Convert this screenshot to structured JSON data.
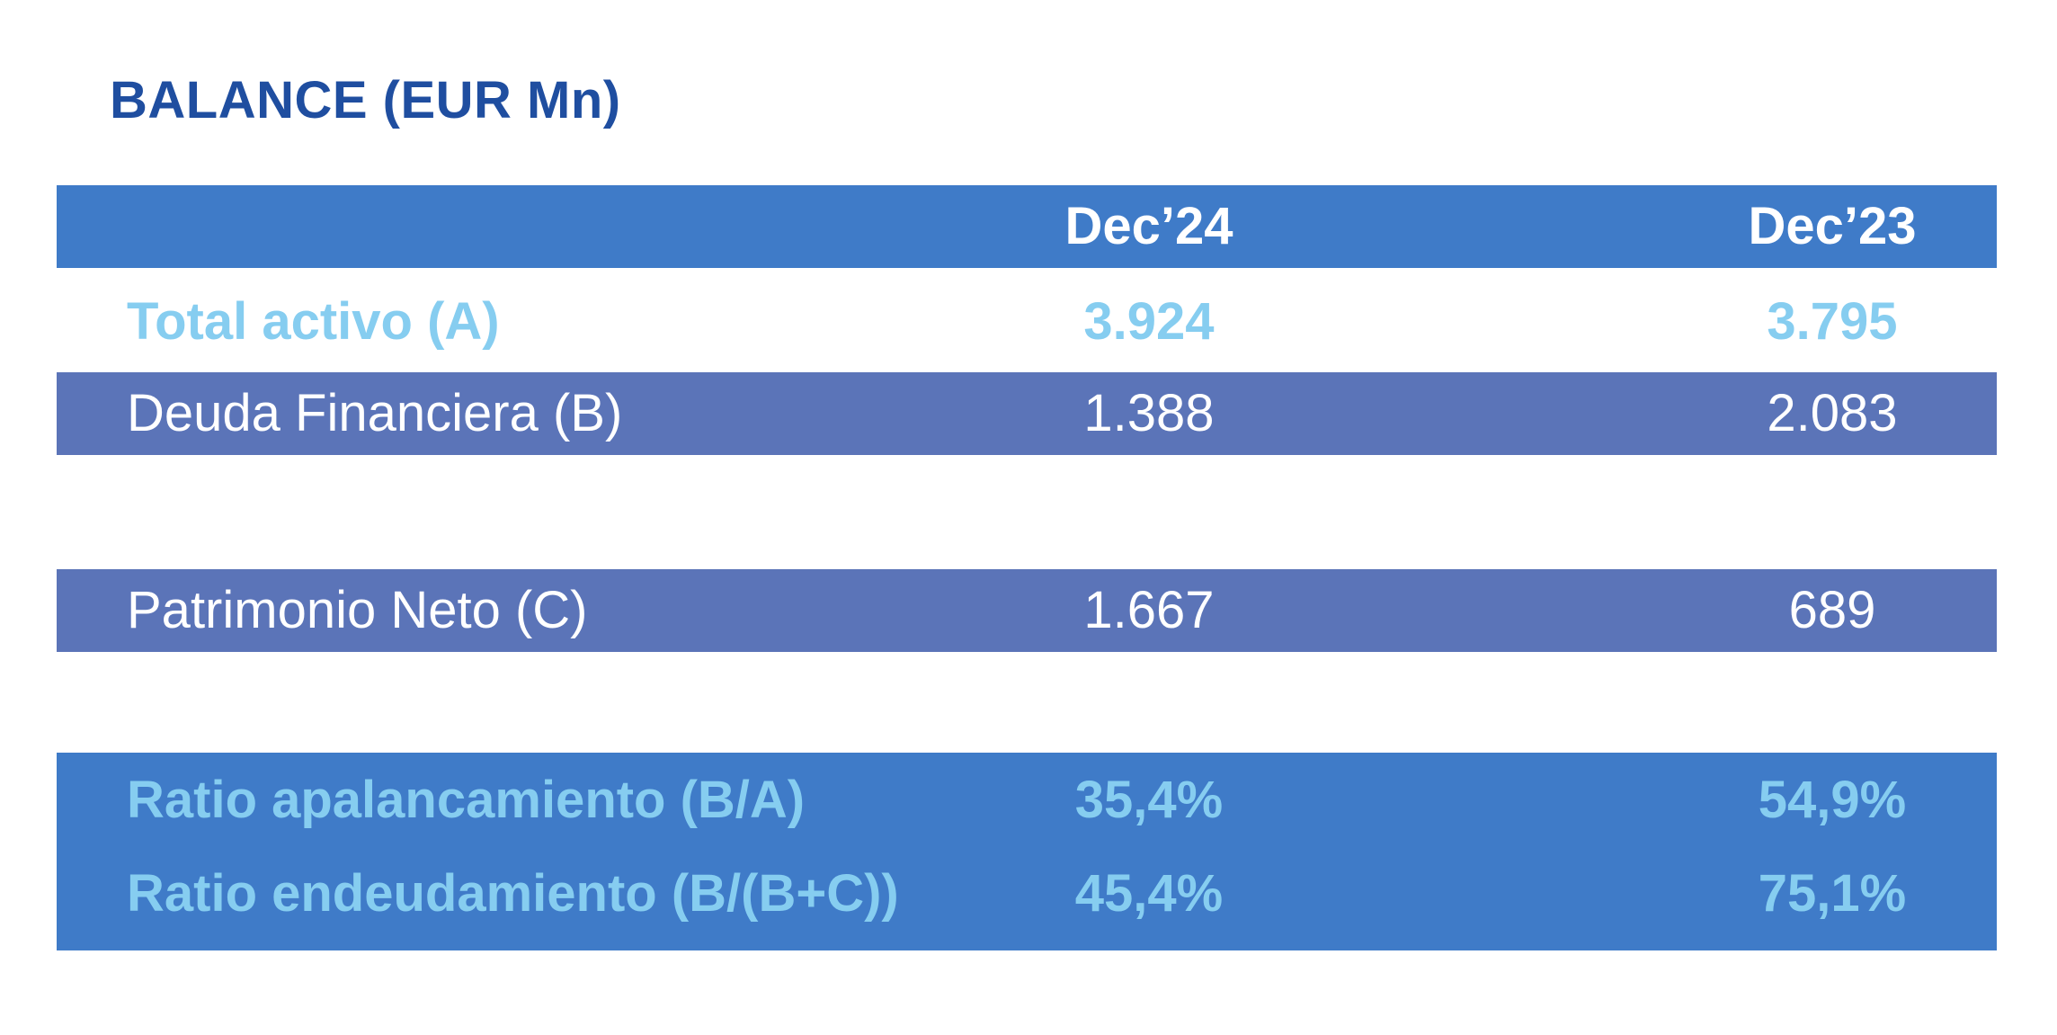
{
  "title": "BALANCE (EUR Mn)",
  "columns": [
    "",
    "Dec’24",
    "Dec’23"
  ],
  "rows": {
    "total_activo": {
      "label": "Total activo (A)",
      "dec24": "3.924",
      "dec23": "3.795"
    },
    "deuda_financiera": {
      "label": "Deuda Financiera (B)",
      "dec24": "1.388",
      "dec23": "2.083"
    },
    "patrimonio_neto": {
      "label": "Patrimonio Neto (C)",
      "dec24": "1.667",
      "dec23": "689"
    },
    "ratio_apalancamiento": {
      "label": "Ratio apalancamiento (B/A)",
      "dec24": "35,4%",
      "dec23": "54,9%"
    },
    "ratio_endeudamiento": {
      "label": "Ratio endeudamiento (B/(B+C))",
      "dec24": "45,4%",
      "dec23": "75,1%"
    }
  },
  "colors": {
    "title": "#1f4ea0",
    "header_bg": "#3f7bc8",
    "row_bg": "#5b74b8",
    "highlight_text": "#86cdf0",
    "white": "#ffffff"
  }
}
